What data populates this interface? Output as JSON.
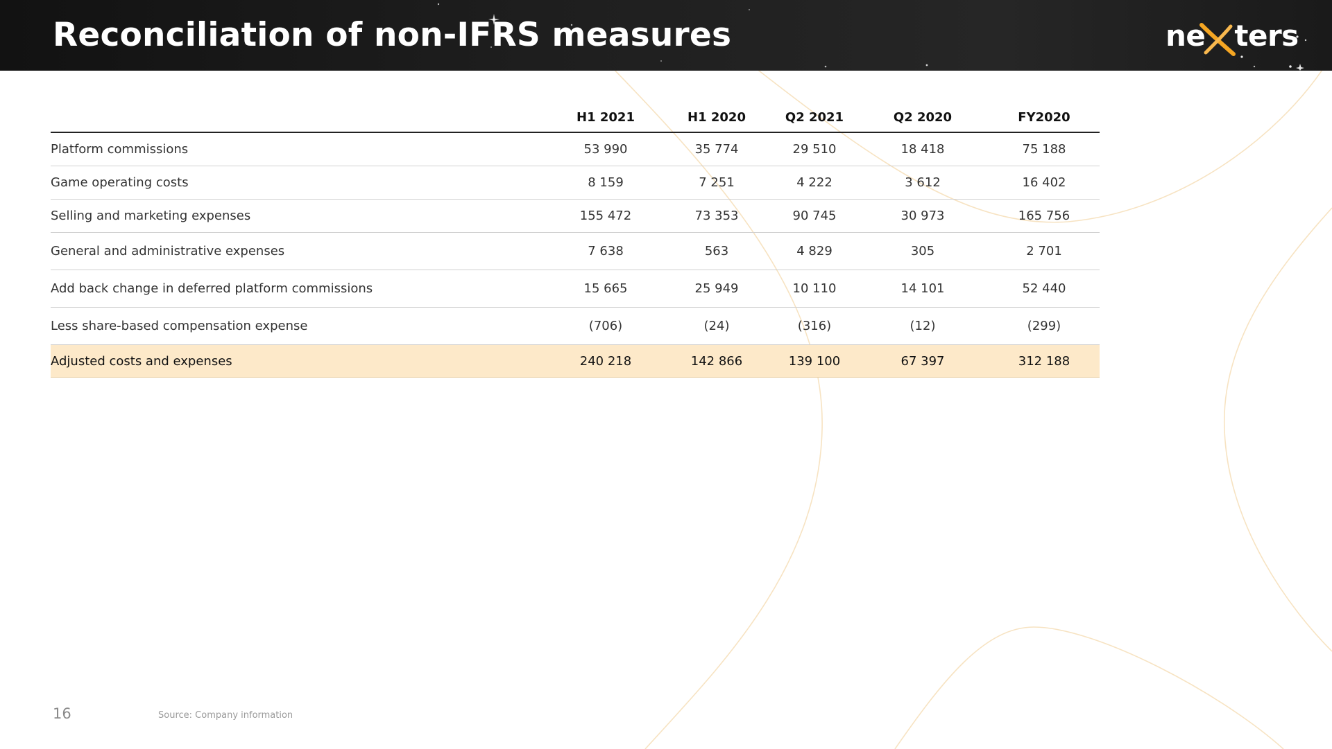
{
  "slide": {
    "title": "Reconciliation of non-IFRS measures",
    "page_number": "16",
    "source": "Source: Company information"
  },
  "logo": {
    "prefix": "ne",
    "suffix": "ters",
    "x_color": "#f5a623"
  },
  "colors": {
    "header_bg": "#1e1e1e",
    "highlight_row": "#fde9c9",
    "curve_color": "#f7e3c2"
  },
  "table": {
    "columns": [
      "H1 2021",
      "H1 2020",
      "Q2 2021",
      "Q2 2020",
      "FY2020"
    ],
    "rows": [
      {
        "label": "Platform commissions",
        "values": [
          "53 990",
          "35 774",
          "29 510",
          "18 418",
          "75 188"
        ]
      },
      {
        "label": "Game operating costs",
        "values": [
          "8 159",
          "7 251",
          "4 222",
          "3 612",
          "16 402"
        ]
      },
      {
        "label": "Selling and marketing expenses",
        "values": [
          "155 472",
          "73 353",
          "90 745",
          "30 973",
          "165 756"
        ]
      },
      {
        "label": "General and administrative expenses",
        "values": [
          "7 638",
          "563",
          "4 829",
          "305",
          "2 701"
        ]
      },
      {
        "label": "Add back change in deferred platform commissions",
        "values": [
          "15 665",
          "25 949",
          "10 110",
          "14 101",
          "52 440"
        ]
      },
      {
        "label": "Less share-based compensation expense",
        "values": [
          "(706)",
          "(24)",
          "(316)",
          "(12)",
          "(299)"
        ]
      }
    ],
    "total": {
      "label": "Adjusted costs and expenses",
      "values": [
        "240 218",
        "142 866",
        "139 100",
        "67 397",
        "312 188"
      ]
    }
  }
}
